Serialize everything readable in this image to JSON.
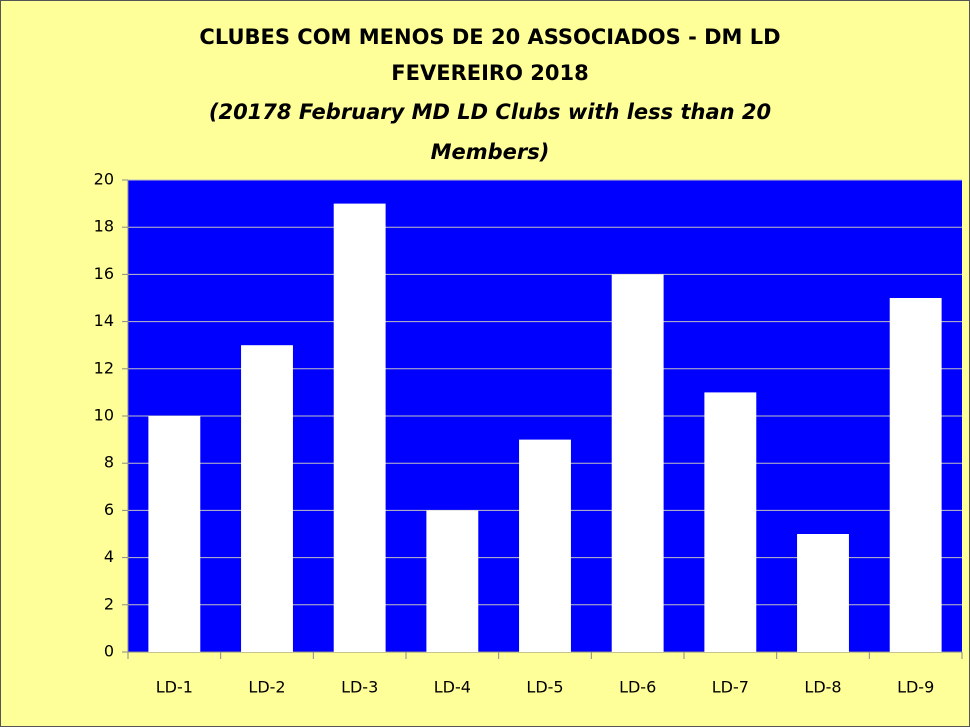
{
  "chart_data": {
    "type": "bar",
    "title": [
      "CLUBES COM MENOS DE 20 ASSOCIADOS - DM LD",
      "FEVEREIRO 2018"
    ],
    "subtitle": [
      "(20178 February  MD LD  Clubs with less than 20",
      "Members)"
    ],
    "categories": [
      "LD-1",
      "LD-2",
      "LD-3",
      "LD-4",
      "LD-5",
      "LD-6",
      "LD-7",
      "LD-8",
      "LD-9"
    ],
    "values": [
      10,
      13,
      19,
      6,
      9,
      16,
      11,
      5,
      15
    ],
    "color": "#ffffff",
    "plot_background": "#0000ff",
    "background": "#ffff99",
    "ylim": [
      0,
      20
    ],
    "yticks": [
      0,
      2,
      4,
      6,
      8,
      10,
      12,
      14,
      16,
      18,
      20
    ],
    "grid": true
  }
}
